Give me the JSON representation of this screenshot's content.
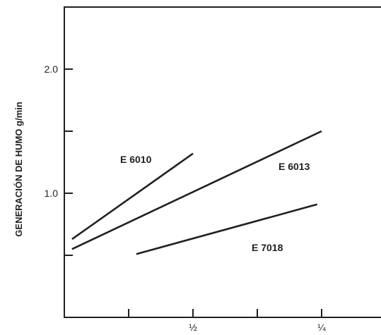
{
  "chart_data": {
    "type": "line",
    "title": "",
    "xlabel": "",
    "ylabel": "GENERACIÓN DE HUMO g/min",
    "xlim": [
      0,
      5
    ],
    "ylim": [
      0,
      2.4
    ],
    "x_ticks": [
      1,
      2,
      3,
      4
    ],
    "x_tick_labels": [
      "",
      "½",
      "",
      "¼"
    ],
    "y_ticks": [
      0.5,
      1.0,
      1.5,
      2.0
    ],
    "y_tick_labels": [
      "",
      "1.0",
      "",
      "2.0"
    ],
    "grid": false,
    "legend": "none",
    "series": [
      {
        "name": "E 6010",
        "x": [
          0.12,
          2.0
        ],
        "y": [
          0.63,
          1.32
        ]
      },
      {
        "name": "E 6013",
        "x": [
          0.12,
          4.0
        ],
        "y": [
          0.55,
          1.5
        ]
      },
      {
        "name": "E 7018",
        "x": [
          1.12,
          3.93
        ],
        "y": [
          0.51,
          0.91
        ]
      }
    ]
  },
  "colors": {
    "ink": "#231f20",
    "background": "#ffffff"
  }
}
